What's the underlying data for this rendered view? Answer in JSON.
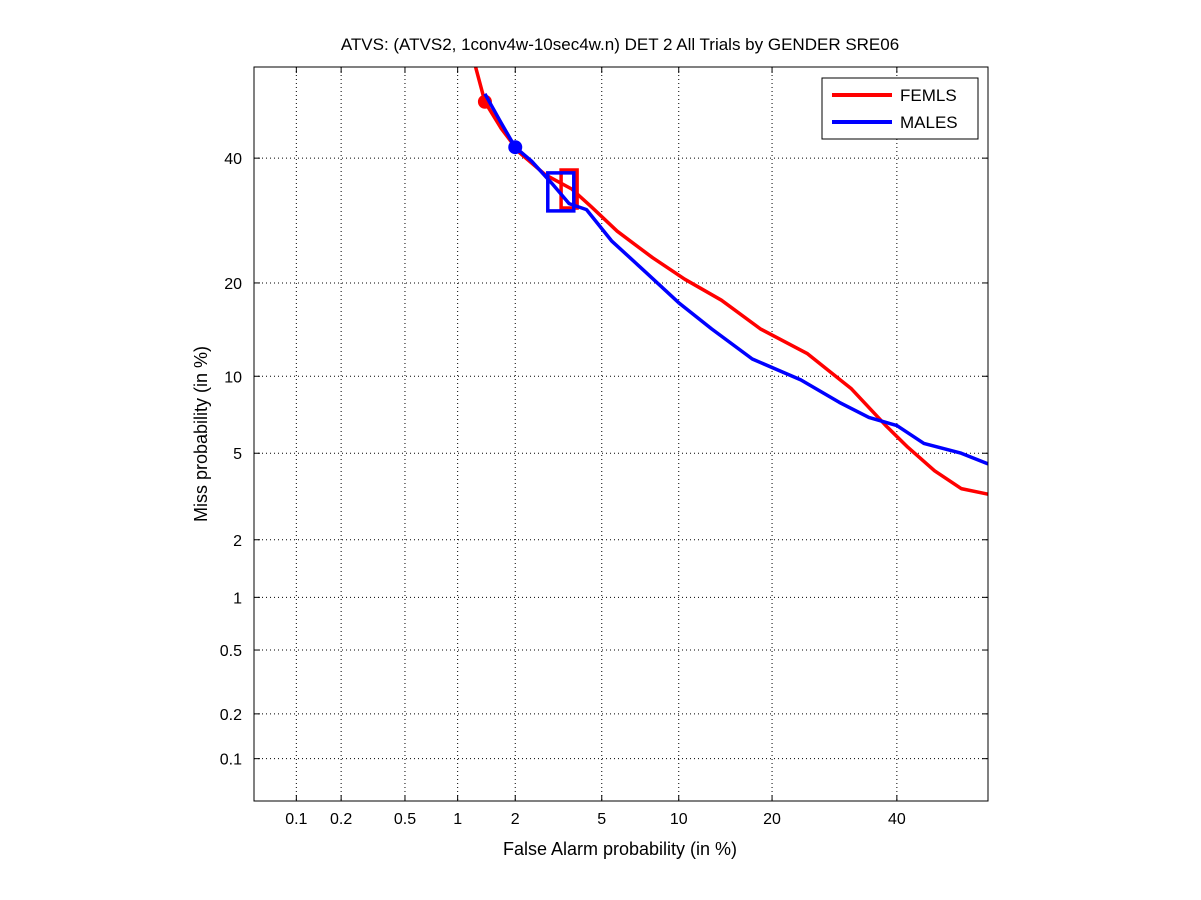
{
  "chart_data": {
    "type": "line",
    "title": "ATVS: (ATVS2, 1conv4w-10sec4w.n) DET 2 All Trials by GENDER SRE06",
    "xlabel": "False Alarm probability (in %)",
    "ylabel": "Miss probability (in %)",
    "x_scale": "normal-deviate (probit)",
    "y_scale": "normal-deviate (probit)",
    "xlim": [
      0.05,
      57
    ],
    "ylim": [
      0.05,
      57
    ],
    "x_ticks": [
      "0.1",
      "0.2",
      "0.5",
      "1",
      "2",
      "5",
      "10",
      "20",
      "40"
    ],
    "y_ticks": [
      "0.1",
      "0.2",
      "0.5",
      "1",
      "2",
      "5",
      "10",
      "20",
      "40"
    ],
    "grid": true,
    "legend_position": "top-right",
    "series": [
      {
        "name": "FEMLS",
        "color": "#ff0000",
        "points": [
          [
            1.25,
            57
          ],
          [
            1.4,
            50.5
          ],
          [
            1.7,
            45.5
          ],
          [
            2.1,
            41
          ],
          [
            2.8,
            37
          ],
          [
            3.7,
            34.5
          ],
          [
            4.5,
            31.5
          ],
          [
            5.8,
            27.5
          ],
          [
            8,
            23.5
          ],
          [
            10.5,
            20.5
          ],
          [
            14,
            17.8
          ],
          [
            18.5,
            14.5
          ],
          [
            25,
            12
          ],
          [
            32,
            9
          ],
          [
            38,
            6.5
          ],
          [
            42,
            5.3
          ],
          [
            47,
            4.2
          ],
          [
            52,
            3.5
          ],
          [
            57,
            3.3
          ]
        ],
        "min_dcf_marker": [
          1.4,
          50.5
        ],
        "eer_marker": [
          3.6,
          34.5
        ]
      },
      {
        "name": "MALES",
        "color": "#0000ff",
        "points": [
          [
            1.4,
            52
          ],
          [
            1.7,
            46.5
          ],
          [
            2,
            42
          ],
          [
            2.4,
            39.5
          ],
          [
            3,
            35.5
          ],
          [
            3.6,
            32
          ],
          [
            4.3,
            31
          ],
          [
            5.5,
            26
          ],
          [
            7.5,
            21.5
          ],
          [
            10,
            17.5
          ],
          [
            13,
            14.5
          ],
          [
            17.5,
            11.5
          ],
          [
            24,
            9.7
          ],
          [
            30,
            8
          ],
          [
            35,
            7
          ],
          [
            40,
            6.5
          ],
          [
            45,
            5.5
          ],
          [
            52,
            5
          ],
          [
            57,
            4.5
          ]
        ],
        "min_dcf_marker": [
          2,
          42
        ],
        "eer_marker": [
          3.3,
          34
        ]
      }
    ]
  }
}
